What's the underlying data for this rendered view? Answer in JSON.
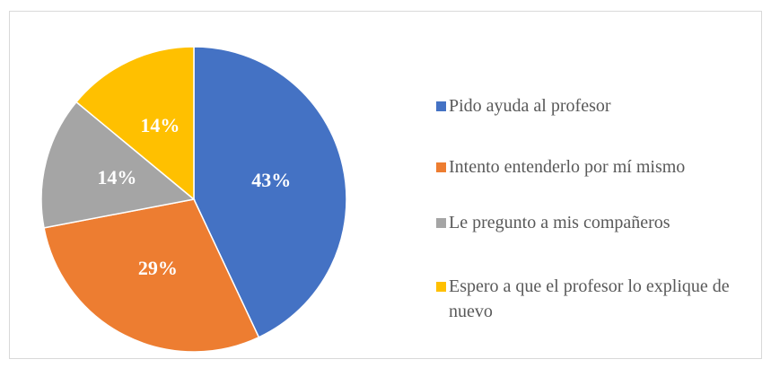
{
  "chart_data": {
    "type": "pie",
    "categories": [
      "Pido ayuda al profesor",
      "Intento entenderlo por mí mismo",
      "Le pregunto a mis compañeros",
      "Espero a que el profesor lo explique de nuevo"
    ],
    "values": [
      43,
      29,
      14,
      14
    ],
    "value_labels": [
      "43%",
      "29%",
      "14%",
      "14%"
    ],
    "colors": [
      "#4472c4",
      "#ed7d31",
      "#a5a5a5",
      "#ffc000"
    ],
    "legend": "right"
  }
}
